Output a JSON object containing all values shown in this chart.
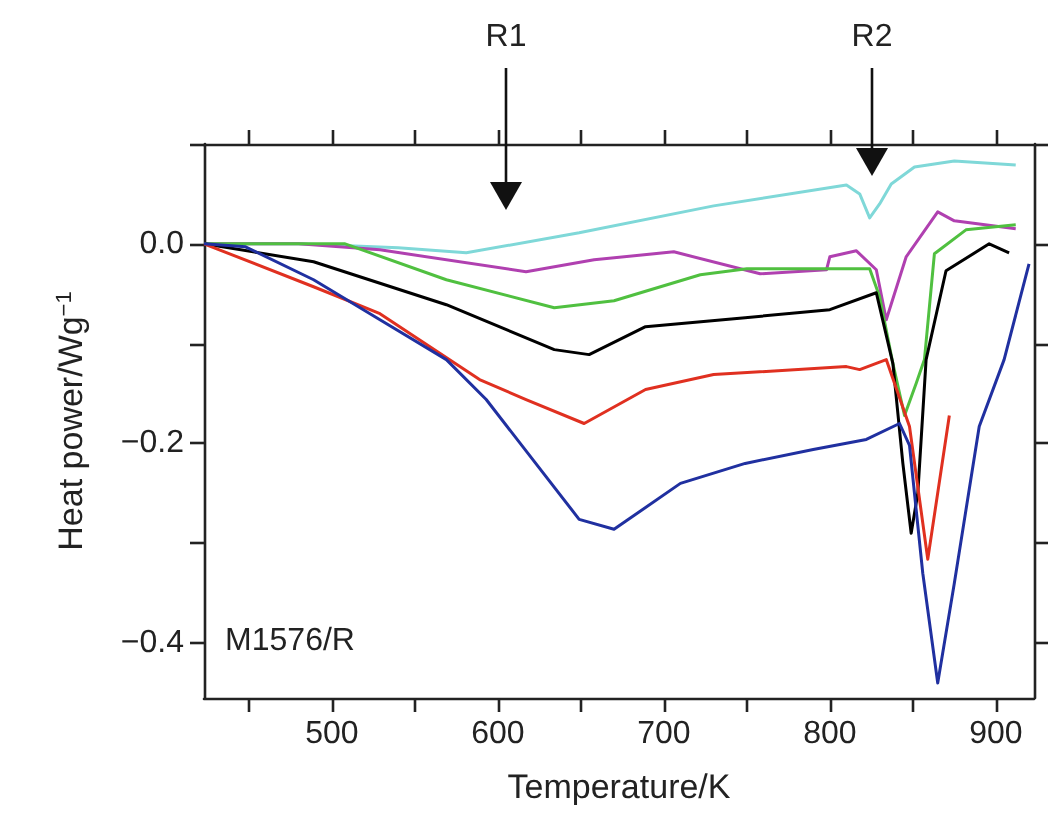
{
  "chart_data": {
    "type": "line",
    "xlabel": "Temperature/K",
    "ylabel": "Heat power/Wg$^{−1}$",
    "xlim": [
      423,
      923
    ],
    "ylim": [
      -0.455,
      0.1
    ],
    "xticks": [
      {
        "value": 450,
        "label": null
      },
      500,
      {
        "value": 550,
        "label": null
      },
      600,
      {
        "value": 650,
        "label": null
      },
      700,
      {
        "value": 750,
        "label": null
      },
      800,
      {
        "value": 850,
        "label": null
      },
      900
    ],
    "yticks": [
      {
        "value": 0.1,
        "label": null
      },
      {
        "value": 0,
        "label": "0.0"
      },
      {
        "value": -0.1,
        "label": null
      },
      {
        "value": -0.2,
        "label": "−0.2"
      },
      {
        "value": -0.3,
        "label": null
      },
      {
        "value": -0.4,
        "label": "−0.4"
      }
    ],
    "marker": "none",
    "line_style": "solid",
    "annotations": [
      "R1",
      "R2",
      "M1576/R"
    ],
    "series": [
      {
        "color": "#7fd8d8",
        "x": [
          423,
          480,
          540,
          581,
          649,
          730,
          810,
          818,
          824,
          830,
          837,
          851,
          875,
          912
        ],
        "values": [
          0,
          0,
          -0.004,
          -0.009,
          0.011,
          0.038,
          0.059,
          0.05,
          0.026,
          0.04,
          0.06,
          0.077,
          0.083,
          0.079
        ]
      },
      {
        "color": "#b040b0",
        "x": [
          423,
          480,
          529,
          617,
          658,
          706,
          758,
          798,
          800,
          816,
          828,
          834,
          846,
          865,
          875,
          912
        ],
        "values": [
          0,
          0,
          -0.006,
          -0.028,
          -0.016,
          -0.008,
          -0.03,
          -0.026,
          -0.013,
          -0.007,
          -0.026,
          -0.076,
          -0.013,
          0.032,
          0.023,
          0.015
        ]
      },
      {
        "color": "#50c040",
        "x": [
          423,
          508,
          569,
          634,
          670,
          722,
          750,
          824,
          830,
          838,
          845,
          852,
          857,
          863,
          882,
          912
        ],
        "values": [
          0,
          0,
          -0.036,
          -0.064,
          -0.057,
          -0.031,
          -0.025,
          -0.025,
          -0.053,
          -0.12,
          -0.172,
          -0.14,
          -0.116,
          -0.01,
          0.014,
          0.019
        ]
      },
      {
        "color": "#000000",
        "x": [
          423,
          489,
          569,
          634,
          655,
          689,
          749,
          800,
          828,
          838,
          844,
          849,
          853,
          858,
          870,
          896,
          908
        ],
        "values": [
          0,
          -0.018,
          -0.061,
          -0.106,
          -0.111,
          -0.083,
          -0.074,
          -0.066,
          -0.049,
          -0.12,
          -0.22,
          -0.29,
          -0.25,
          -0.116,
          -0.027,
          0,
          -0.009
        ]
      },
      {
        "color": "#e03020",
        "x": [
          423,
          489,
          529,
          589,
          617,
          652,
          689,
          730,
          810,
          818,
          834,
          848,
          859,
          872
        ],
        "values": [
          0,
          -0.043,
          -0.07,
          -0.136,
          -0.156,
          -0.18,
          -0.146,
          -0.131,
          -0.123,
          -0.126,
          -0.116,
          -0.183,
          -0.316,
          -0.172
        ]
      },
      {
        "color": "#2030a0",
        "x": [
          423,
          448,
          489,
          529,
          569,
          593,
          649,
          670,
          710,
          749,
          790,
          822,
          842,
          848,
          856,
          865,
          875,
          890,
          905,
          920
        ],
        "values": [
          0,
          -0.003,
          -0.036,
          -0.076,
          -0.116,
          -0.156,
          -0.276,
          -0.286,
          -0.24,
          -0.22,
          -0.206,
          -0.196,
          -0.18,
          -0.202,
          -0.33,
          -0.44,
          -0.34,
          -0.183,
          -0.116,
          -0.02
        ]
      }
    ]
  }
}
